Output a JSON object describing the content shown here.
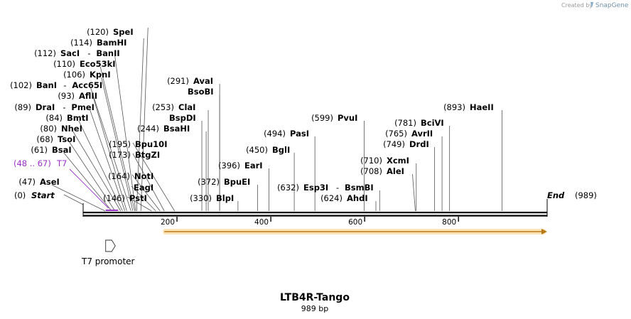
{
  "credit": {
    "prefix": "Created by",
    "brand": "SnapGene"
  },
  "sequence": {
    "name": "LTB4R-Tango",
    "length_label": "989 bp",
    "length": 989
  },
  "ends": {
    "start_label": "Start",
    "start_pos": "(0)",
    "end_label": "End",
    "end_pos": "(989)"
  },
  "ruler": {
    "ticks": [
      {
        "pos": 200,
        "label": "200"
      },
      {
        "pos": 400,
        "label": "400"
      },
      {
        "pos": 600,
        "label": "600"
      },
      {
        "pos": 800,
        "label": "800"
      }
    ]
  },
  "sites": [
    {
      "pos": 47,
      "num": "(47)",
      "name": "AseI"
    },
    {
      "pos": 61,
      "num": "(61)",
      "name": "BsaI"
    },
    {
      "pos": 68,
      "num": "(68)",
      "name": "TsoI"
    },
    {
      "pos": 80,
      "num": "(80)",
      "name": "NheI"
    },
    {
      "pos": 84,
      "num": "(84)",
      "name": "BmtI"
    },
    {
      "pos": 89,
      "num": "(89)",
      "name": "DraI",
      "alt": "PmeI"
    },
    {
      "pos": 93,
      "num": "(93)",
      "name": "AflII"
    },
    {
      "pos": 102,
      "num": "(102)",
      "name": "BanI",
      "alt": "Acc65I"
    },
    {
      "pos": 106,
      "num": "(106)",
      "name": "KpnI"
    },
    {
      "pos": 110,
      "num": "(110)",
      "name": "Eco53kI"
    },
    {
      "pos": 112,
      "num": "(112)",
      "name": "SacI",
      "alt": "BanII"
    },
    {
      "pos": 114,
      "num": "(114)",
      "name": "BamHI"
    },
    {
      "pos": 120,
      "num": "(120)",
      "name": "SpeI"
    },
    {
      "pos": 146,
      "num": "(146)",
      "name": "PstI"
    },
    {
      "pos": 155,
      "num": "",
      "name": "EagI"
    },
    {
      "pos": 164,
      "num": "(164)",
      "name": "NotI"
    },
    {
      "pos": 173,
      "num": "(173)",
      "name": "BtgZI"
    },
    {
      "pos": 195,
      "num": "(195)",
      "name": "Bpu10I"
    },
    {
      "pos": 244,
      "num": "(244)",
      "name": "BsaHI"
    },
    {
      "pos": 253,
      "num": "",
      "name": "BspDI"
    },
    {
      "pos": 253,
      "num": "(253)",
      "name": "ClaI"
    },
    {
      "pos": 291,
      "num": "",
      "name": "BsoBI"
    },
    {
      "pos": 291,
      "num": "(291)",
      "name": "AvaI"
    },
    {
      "pos": 330,
      "num": "(330)",
      "name": "BlpI"
    },
    {
      "pos": 372,
      "num": "(372)",
      "name": "BpuEI"
    },
    {
      "pos": 396,
      "num": "(396)",
      "name": "EarI"
    },
    {
      "pos": 450,
      "num": "(450)",
      "name": "BglI"
    },
    {
      "pos": 494,
      "num": "(494)",
      "name": "PasI"
    },
    {
      "pos": 599,
      "num": "(599)",
      "name": "PvuI"
    },
    {
      "pos": 624,
      "num": "(624)",
      "name": "AhdI"
    },
    {
      "pos": 632,
      "num": "(632)",
      "name": "Esp3I",
      "alt": "BsmBI"
    },
    {
      "pos": 708,
      "num": "(708)",
      "name": "AleI"
    },
    {
      "pos": 710,
      "num": "(710)",
      "name": "XcmI"
    },
    {
      "pos": 749,
      "num": "(749)",
      "name": "DrdI"
    },
    {
      "pos": 765,
      "num": "(765)",
      "name": "AvrII"
    },
    {
      "pos": 781,
      "num": "(781)",
      "name": "BciVI"
    },
    {
      "pos": 893,
      "num": "(893)",
      "name": "HaeII"
    }
  ],
  "features": {
    "primer": {
      "range": "(48 .. 67)",
      "name": "T7",
      "start": 48,
      "end": 67,
      "color": "#9b30c8"
    },
    "promoter": {
      "name": "T7 promoter",
      "start": 48,
      "end": 67
    },
    "orf": {
      "start": 176,
      "end": 989,
      "color": "#f0a030"
    }
  }
}
